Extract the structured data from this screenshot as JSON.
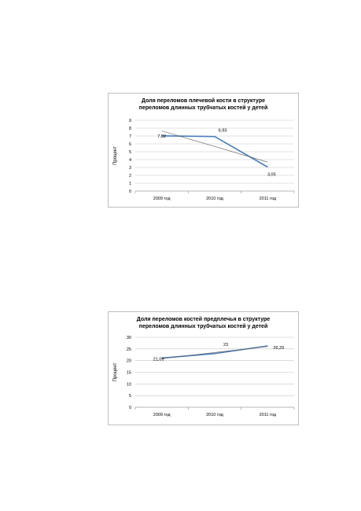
{
  "chart_data": [
    {
      "type": "line",
      "title_lines": [
        "Доля переломов плечевой кости в структуре",
        "переломов длинных трубчатых костей у детей"
      ],
      "ylabel": "Процент",
      "categories": [
        "2009 год",
        "2010 год",
        "2011 год"
      ],
      "values": [
        7.02,
        6.93,
        3.05
      ],
      "data_labels": [
        "7,02",
        "6,93",
        "3,05"
      ],
      "trendline": true,
      "ylim": [
        0,
        9
      ],
      "yticks": [
        0,
        1,
        2,
        3,
        4,
        5,
        6,
        7,
        8,
        9
      ],
      "grid": true,
      "line_color": "#4a7ebb"
    },
    {
      "type": "line",
      "title_lines": [
        "Доля переломов костей предплечья в структуре",
        "переломов длинных трубчатых костей у детей"
      ],
      "ylabel": "Процент",
      "categories": [
        "2009 год",
        "2010 год",
        "2011 год"
      ],
      "values": [
        21.09,
        23,
        26.29
      ],
      "data_labels": [
        "21,09",
        "23",
        "26,29"
      ],
      "trendline": true,
      "ylim": [
        0,
        30
      ],
      "yticks": [
        0,
        5,
        10,
        15,
        20,
        25,
        30
      ],
      "grid": true,
      "line_color": "#4a7ebb"
    }
  ]
}
